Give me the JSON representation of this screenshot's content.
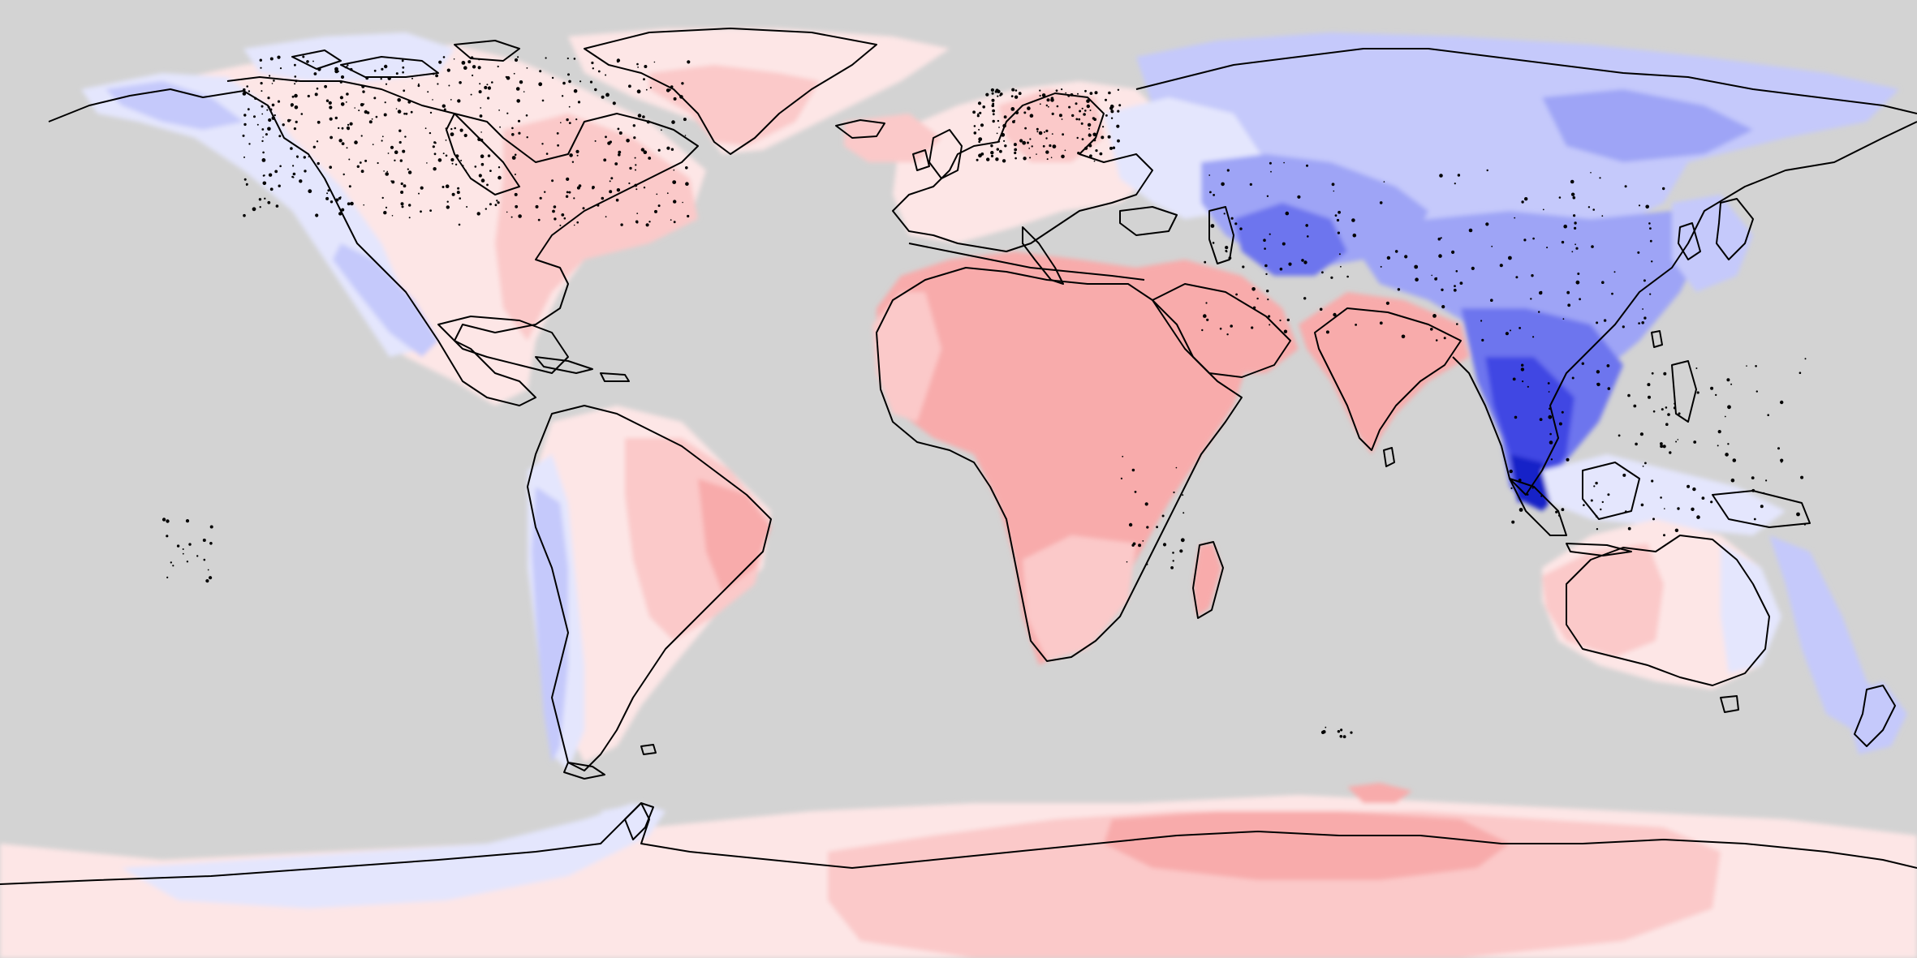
{
  "map": {
    "projection": "equirectangular",
    "extent": {
      "lon": [
        -180,
        180
      ],
      "lat": [
        -90,
        90
      ]
    },
    "colors": {
      "ocean": "#d3d3d3",
      "coastline": "#000000",
      "red_1": "#fde6e6",
      "red_2": "#fbc9c9",
      "red_3": "#f8abab",
      "red_4": "#f59696",
      "blue_1": "#e4e6fd",
      "blue_2": "#c5c9fb",
      "blue_3": "#9ea4f6",
      "blue_4": "#6d74ee",
      "blue_5": "#3f46e3",
      "blue_6": "#1820c8"
    },
    "legend": null,
    "title": "",
    "field_description": ""
  }
}
